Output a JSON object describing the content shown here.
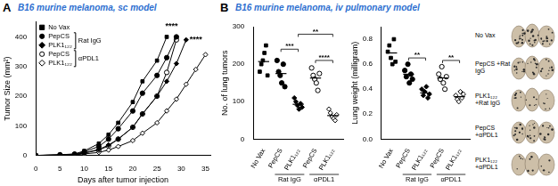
{
  "chart_data": [
    {
      "panel": "A",
      "title": "B16 murine melanoma, sc model",
      "type": "line",
      "xlabel": "Days after tumor injection",
      "ylabel": "Tumor Size (mm²)",
      "x": [
        0,
        5,
        8,
        10,
        13,
        15,
        17,
        20,
        22,
        25,
        27,
        29,
        31,
        33,
        35
      ],
      "xlim": [
        0,
        36
      ],
      "xticks": [
        0,
        5,
        10,
        15,
        20,
        25,
        30,
        35
      ],
      "ylim": [
        0,
        450
      ],
      "yticks": [
        0,
        100,
        200,
        300,
        400
      ],
      "grid": false,
      "legend": "upper left",
      "series": [
        {
          "name": "No Vax",
          "color": "#000000",
          "marker": "square",
          "values": [
            0,
            2,
            5,
            15,
            40,
            70,
            110,
            180,
            250,
            320,
            400,
            null,
            null,
            null,
            null
          ]
        },
        {
          "name": "PepCS",
          "color": "#000000",
          "marker": "circle",
          "values": [
            0,
            2,
            4,
            12,
            30,
            55,
            90,
            150,
            210,
            270,
            330,
            400,
            null,
            null,
            null
          ]
        },
        {
          "name": "PLK1₁₂₂",
          "color": "#000000",
          "marker": "diamond",
          "values": [
            0,
            1,
            3,
            8,
            20,
            35,
            55,
            95,
            140,
            200,
            250,
            310,
            390,
            null,
            null
          ]
        },
        {
          "name": "PepCS",
          "color": "#000000",
          "marker": "circle-open",
          "values": [
            0,
            1,
            3,
            8,
            18,
            32,
            55,
            95,
            140,
            200,
            280,
            390,
            null,
            null,
            null
          ]
        },
        {
          "name": "PLK1₁₂₂",
          "color": "#000000",
          "marker": "diamond-open",
          "values": [
            0,
            1,
            2,
            5,
            10,
            18,
            30,
            50,
            75,
            110,
            150,
            190,
            240,
            290,
            340
          ]
        }
      ],
      "groups": [
        {
          "label": "Rat IgG",
          "from": 1,
          "to": 2
        },
        {
          "label": "αPDL1",
          "from": 3,
          "to": 4
        }
      ],
      "annotations": [
        {
          "text": "****",
          "x": 28,
          "y": 435
        },
        {
          "text": "****",
          "x": 33,
          "y": 390
        }
      ]
    },
    {
      "panel": "B",
      "title": "B16 murine melanoma, iv pulmonary model",
      "type": "scatter",
      "ylabel": "No. of lung tumors",
      "ylim": [
        0,
        300
      ],
      "yticks": [
        0,
        100,
        200,
        300
      ],
      "grid": false,
      "series": [
        {
          "name": "No Vax",
          "color": "#000000",
          "marker": "square",
          "values": [
            180,
            200,
            210,
            230,
            250,
            170
          ],
          "mean": 207
        },
        {
          "name": "PepCS",
          "color": "#000000",
          "marker": "circle",
          "values": [
            210,
            180,
            170,
            150,
            200,
            140
          ],
          "mean": 175
        },
        {
          "name": "PLK1₁₂₂",
          "color": "#000000",
          "marker": "diamond",
          "values": [
            110,
            100,
            90,
            80,
            95,
            85
          ],
          "mean": 93
        },
        {
          "name": "PepCS",
          "color": "#000000",
          "marker": "circle-open",
          "values": [
            190,
            170,
            160,
            150,
            130,
            175
          ],
          "mean": 163
        },
        {
          "name": "PLK1₁₂₂",
          "color": "#000000",
          "marker": "diamond-open",
          "values": [
            80,
            70,
            60,
            55,
            50,
            65
          ],
          "mean": 63
        }
      ],
      "groups": [
        {
          "label": "Rat IgG",
          "from": 1,
          "to": 2
        },
        {
          "label": "αPDL1",
          "from": 3,
          "to": 4
        }
      ],
      "annotations": [
        {
          "text": "**",
          "from": 2,
          "to": 4,
          "y": 280
        },
        {
          "text": "***",
          "from": 1,
          "to": 2,
          "y": 240
        },
        {
          "text": "****",
          "from": 3,
          "to": 4,
          "y": 210
        }
      ]
    },
    {
      "type": "scatter",
      "ylabel": "Lung weight (milligram)",
      "ylim": [
        0,
        0.9
      ],
      "yticks": [
        {
          "value": 0,
          "label": "0.0"
        },
        0.2,
        0.4,
        0.6,
        0.8
      ],
      "grid": false,
      "series": [
        {
          "name": "No Vax",
          "color": "#000000",
          "marker": "square",
          "values": [
            0.7,
            0.75,
            0.65,
            0.6,
            0.8,
            0.62
          ],
          "mean": 0.69
        },
        {
          "name": "PepCS",
          "color": "#000000",
          "marker": "circle",
          "values": [
            0.55,
            0.5,
            0.6,
            0.45,
            0.52,
            0.48
          ],
          "mean": 0.52
        },
        {
          "name": "PLK1₁₂₂",
          "color": "#000000",
          "marker": "diamond",
          "values": [
            0.4,
            0.35,
            0.38,
            0.42,
            0.33,
            0.36
          ],
          "mean": 0.37
        },
        {
          "name": "PepCS",
          "color": "#000000",
          "marker": "circle-open",
          "values": [
            0.52,
            0.48,
            0.58,
            0.45,
            0.4,
            0.5
          ],
          "mean": 0.49
        },
        {
          "name": "PLK1₁₂₂",
          "color": "#000000",
          "marker": "diamond-open",
          "values": [
            0.35,
            0.32,
            0.3,
            0.38,
            0.33,
            0.36
          ],
          "mean": 0.34
        }
      ],
      "groups": [
        {
          "label": "Rat IgG",
          "from": 1,
          "to": 2
        },
        {
          "label": "αPDL1",
          "from": 3,
          "to": 4
        }
      ],
      "annotations": [
        {
          "text": "**",
          "from": 1,
          "to": 2,
          "y": 0.65
        },
        {
          "text": "**",
          "from": 3,
          "to": 4,
          "y": 0.63
        }
      ]
    }
  ],
  "lung_photos": {
    "labels": [
      "No Vax",
      "PepCS +Rat IgG",
      "PLK1₁₂₂ +Rat IgG",
      "PepCS +αPDL1",
      "PLK1₁₂₂ +αPDL1"
    ]
  }
}
